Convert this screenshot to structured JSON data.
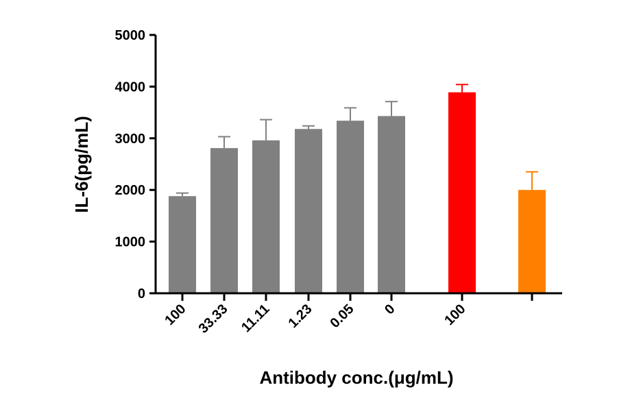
{
  "chart_data": {
    "type": "bar",
    "ylabel": "IL-6(pg/mL)",
    "xlabel": "Antibody conc.(μg/mL)",
    "ylim": [
      0,
      5000
    ],
    "yticks": [
      0,
      1000,
      2000,
      3000,
      4000,
      5000
    ],
    "grid": false,
    "categories": [
      "100",
      "33.33",
      "11.11",
      "1.23",
      "0.05",
      "0",
      "100",
      ""
    ],
    "values": [
      1880,
      2810,
      2960,
      3180,
      3340,
      3430,
      3890,
      2000
    ],
    "errors": [
      60,
      220,
      400,
      60,
      250,
      280,
      150,
      350
    ],
    "colors": [
      "#808080",
      "#808080",
      "#808080",
      "#808080",
      "#808080",
      "#808080",
      "#ff0000",
      "#ff8000"
    ]
  }
}
